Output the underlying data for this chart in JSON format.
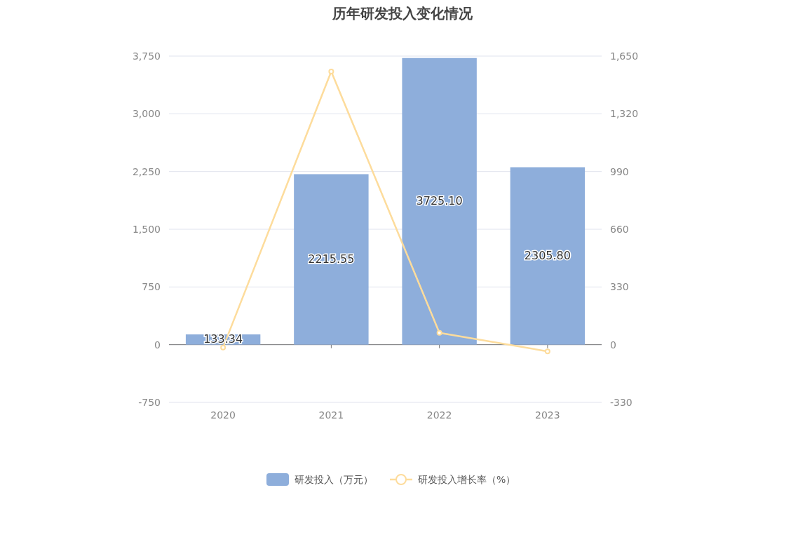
{
  "chart_data": {
    "type": "bar",
    "title": "历年研发投入变化情况",
    "categories": [
      "2020",
      "2021",
      "2022",
      "2023"
    ],
    "series": [
      {
        "name": "研发投入（万元）",
        "color": "#8eaedb",
        "values": [
          133.34,
          2215.55,
          3725.1,
          2305.8
        ],
        "value_labels": [
          "133.34",
          "2215.55",
          "3725.10",
          "2305.80"
        ]
      },
      {
        "name": "研发投入增长率（%）",
        "type": "line",
        "axis": "y2",
        "color": "#fddc9c",
        "values": [
          -16,
          1562,
          68,
          -38
        ]
      }
    ],
    "ylim": [
      -750,
      3750
    ],
    "yticks": [
      -750,
      0,
      750,
      {
        "value": 1500,
        "label": "1,500"
      },
      {
        "value": 2250,
        "label": "2,250"
      },
      {
        "value": 3000,
        "label": "3,000"
      },
      {
        "value": 3750,
        "label": "3,750"
      }
    ],
    "y2lim": [
      -330,
      1650
    ],
    "y2ticks": [
      -330,
      0,
      330,
      660,
      990,
      {
        "value": 1320,
        "label": "1,320"
      },
      {
        "value": 1650,
        "label": "1,650"
      }
    ],
    "grid": "y",
    "legend": "bottom",
    "marker": "circle"
  }
}
